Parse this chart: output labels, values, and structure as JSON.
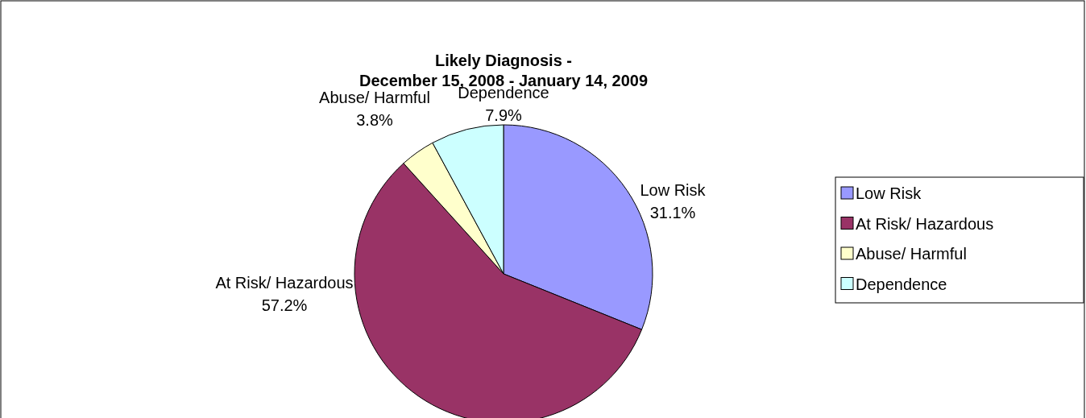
{
  "chart_data": {
    "type": "pie",
    "title": "Likely Diagnosis -\nDecember 15, 2008 - January 14, 2009",
    "categories": [
      "Low Risk",
      "At Risk/ Hazardous",
      "Abuse/ Harmful",
      "Dependence"
    ],
    "values": [
      31.1,
      57.2,
      3.8,
      7.9
    ],
    "colors": [
      "#9999ff",
      "#993366",
      "#ffffcc",
      "#ccffff"
    ],
    "value_labels": [
      "31.1%",
      "57.2%",
      "3.8%",
      "7.9%"
    ],
    "legend": "right"
  }
}
